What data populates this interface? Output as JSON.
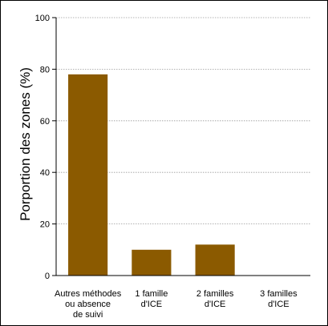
{
  "chart_data": {
    "type": "bar",
    "categories": [
      [
        "Autres méthodes",
        "ou absence",
        "de suivi"
      ],
      [
        "1 famille",
        "d'ICE"
      ],
      [
        "2 familles",
        "d'ICE"
      ],
      [
        "3 familles",
        "d'ICE"
      ]
    ],
    "values": [
      78,
      10,
      12,
      0
    ],
    "ylabel": "Porportion des zones (%)",
    "ylim": [
      0,
      100
    ],
    "yticks": [
      0,
      20,
      40,
      60,
      80,
      100
    ],
    "grid": "horizontal-dotted",
    "bar_color": "#8B5A00"
  }
}
